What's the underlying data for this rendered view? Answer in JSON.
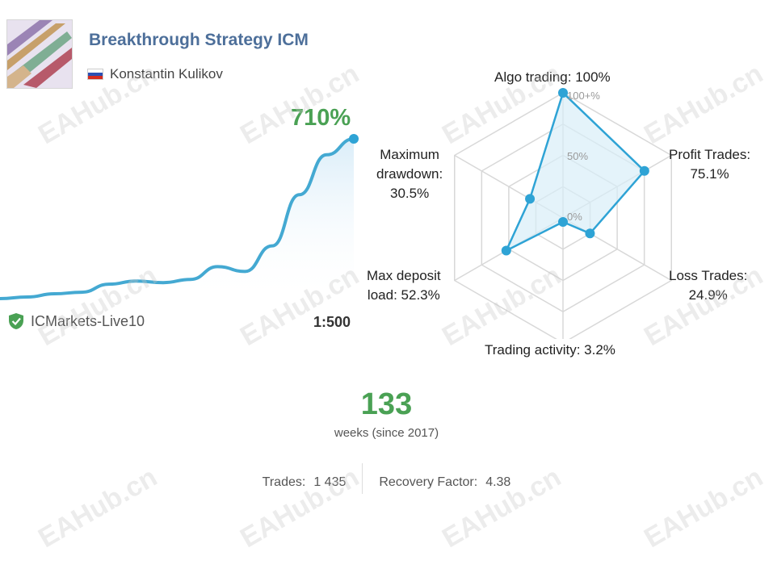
{
  "profile": {
    "title": "Breakthrough Strategy ICM",
    "author": "Konstantin Kulikov",
    "growth": "710%",
    "broker": "ICMarkets-Live10",
    "leverage": "1:500"
  },
  "chart_data": {
    "type": "line",
    "y": [
      0,
      1,
      3,
      4,
      9,
      11,
      10,
      12,
      20,
      17,
      33,
      65,
      90,
      100
    ],
    "ylim": [
      0,
      100
    ]
  },
  "radar": {
    "rings": [
      "100+%",
      "50%",
      "0%"
    ],
    "axes": [
      {
        "label": "Algo trading:",
        "value": "100%",
        "v": 1.0
      },
      {
        "label": "Profit Trades:",
        "value": "75.1%",
        "v": 0.751
      },
      {
        "label": "Loss Trades:",
        "value": "24.9%",
        "v": 0.249
      },
      {
        "label": "Trading activity:",
        "value": "3.2%",
        "v": 0.032
      },
      {
        "label": "Max deposit load:",
        "label_line1": "Max deposit",
        "label_line2": "load:",
        "value": "52.3%",
        "v": 0.523
      },
      {
        "label": "Maximum drawdown:",
        "label_line1": "Maximum",
        "label_line2": "drawdown:",
        "value": "30.5%",
        "v": 0.305
      }
    ],
    "colors": {
      "fill": "#d9eef8",
      "stroke": "#2ea3d5",
      "grid": "#d8d8d8"
    }
  },
  "summary": {
    "weeks": "133",
    "weeks_label": "weeks (since 2017)",
    "trades_label": "Trades:",
    "trades_value": "1 435",
    "recovery_label": "Recovery Factor:",
    "recovery_value": "4.38"
  },
  "watermark": "EAHub.cn"
}
